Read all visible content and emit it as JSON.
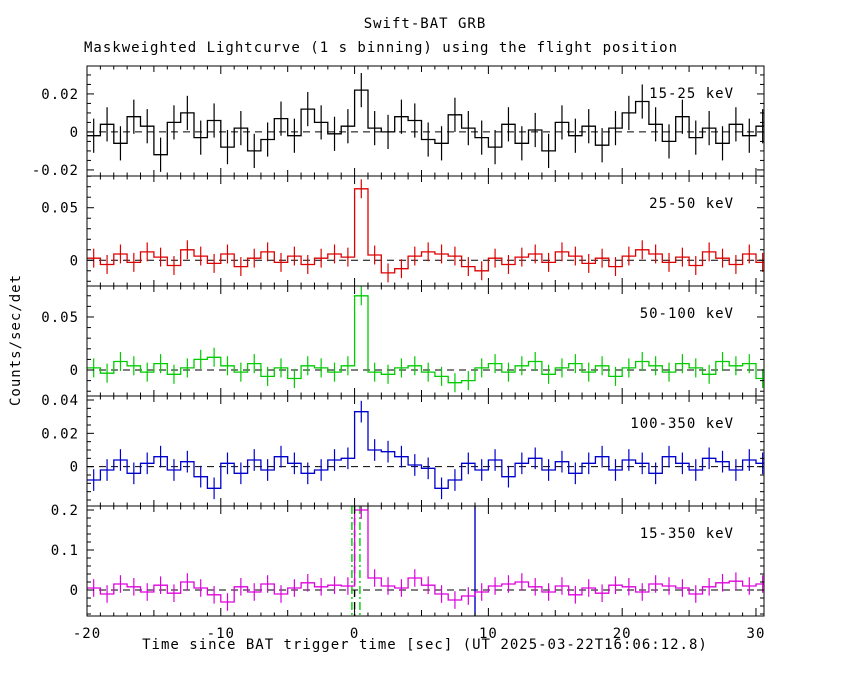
{
  "chart_data": {
    "type": "line",
    "title": "Swift-BAT GRB",
    "subtitle": "Maskweighted Lightcurve (1 s binning) using the flight position",
    "y_axis_label": "Counts/sec/det",
    "x_axis": {
      "label": "Time since BAT trigger time [sec] (UT 2025-03-22T16:06:12.8)",
      "xlim": [
        -20,
        30.6
      ],
      "major_ticks": [
        [
          -20,
          "-20"
        ],
        [
          -10,
          "-10"
        ],
        [
          0,
          "0"
        ],
        [
          10,
          "10"
        ],
        [
          20,
          "20"
        ],
        [
          30,
          "30"
        ]
      ],
      "minor_step": 1,
      "x_start": -20,
      "bin_width": 1
    },
    "panels": [
      {
        "label": "15-25 keV",
        "color": "#000000",
        "ylim": [
          -0.0232,
          0.0347
        ],
        "yticks": [
          [
            -0.02,
            "-0.02"
          ],
          [
            0,
            "0"
          ],
          [
            0.02,
            "0.02"
          ]
        ],
        "ytick_minor_step": 0.005,
        "error": 0.009,
        "values": [
          -0.002,
          0.004,
          -0.006,
          0.008,
          0.003,
          -0.012,
          0.005,
          0.01,
          -0.003,
          0.006,
          -0.008,
          0.002,
          -0.01,
          -0.004,
          0.007,
          -0.002,
          0.012,
          0.005,
          -0.001,
          0.003,
          0.022,
          0.002,
          0.0,
          0.008,
          0.006,
          -0.004,
          -0.006,
          0.009,
          0.002,
          -0.003,
          -0.008,
          0.004,
          -0.006,
          0.001,
          -0.01,
          0.005,
          -0.002,
          0.003,
          -0.007,
          0.002,
          0.01,
          0.016,
          0.004,
          -0.005,
          0.008,
          -0.003,
          0.002,
          -0.006,
          0.004,
          -0.002,
          0.003
        ],
        "vlines": []
      },
      {
        "label": "25-50 keV",
        "color": "#dd0000",
        "ylim": [
          -0.0245,
          0.0802
        ],
        "yticks": [
          [
            0,
            "0"
          ],
          [
            0.05,
            "0.05"
          ]
        ],
        "ytick_minor_step": 0.01,
        "error": 0.009,
        "values": [
          0.002,
          -0.004,
          0.006,
          -0.002,
          0.008,
          0.003,
          -0.005,
          0.01,
          0.004,
          -0.003,
          0.006,
          -0.006,
          0.002,
          0.008,
          -0.002,
          0.004,
          -0.004,
          0.002,
          0.006,
          0.003,
          0.068,
          0.005,
          -0.012,
          -0.008,
          0.004,
          0.008,
          0.006,
          0.004,
          -0.006,
          -0.01,
          0.002,
          -0.004,
          0.003,
          0.006,
          -0.002,
          0.008,
          0.004,
          -0.003,
          0.002,
          -0.006,
          0.004,
          0.01,
          0.006,
          -0.002,
          0.003,
          -0.005,
          0.008,
          0.002,
          -0.004,
          0.006,
          -0.002
        ],
        "vlines": []
      },
      {
        "label": "50-100 keV",
        "color": "#00cc00",
        "ylim": [
          -0.0245,
          0.0792
        ],
        "yticks": [
          [
            0,
            "0"
          ],
          [
            0.05,
            "0.05"
          ]
        ],
        "ytick_minor_step": 0.01,
        "error": 0.009,
        "values": [
          0.002,
          -0.003,
          0.008,
          0.004,
          -0.002,
          0.006,
          -0.004,
          0.002,
          0.01,
          0.012,
          0.004,
          -0.002,
          0.006,
          -0.006,
          0.002,
          -0.008,
          0.004,
          0.002,
          -0.002,
          0.004,
          0.07,
          -0.002,
          -0.004,
          0.002,
          0.004,
          -0.002,
          -0.006,
          -0.012,
          -0.01,
          0.002,
          0.006,
          -0.002,
          0.004,
          0.008,
          -0.004,
          0.002,
          0.006,
          -0.002,
          0.004,
          -0.006,
          0.002,
          0.008,
          0.004,
          -0.002,
          0.006,
          0.002,
          -0.004,
          0.008,
          0.004,
          0.006,
          -0.008
        ],
        "vlines": []
      },
      {
        "label": "100-350 keV",
        "color": "#0000cc",
        "ylim": [
          -0.0236,
          0.0424
        ],
        "yticks": [
          [
            0,
            "0"
          ],
          [
            0.02,
            "0.02"
          ],
          [
            0.04,
            "0.04"
          ]
        ],
        "ytick_minor_step": 0.005,
        "error": 0.0065,
        "values": [
          -0.008,
          -0.002,
          0.004,
          -0.004,
          0.002,
          0.006,
          -0.002,
          0.003,
          -0.006,
          -0.013,
          0.002,
          -0.004,
          0.004,
          -0.002,
          0.006,
          0.002,
          -0.004,
          -0.002,
          0.004,
          0.005,
          0.033,
          0.01,
          0.009,
          0.006,
          0.001,
          -0.001,
          -0.013,
          -0.008,
          0.002,
          -0.002,
          0.004,
          -0.006,
          0.002,
          0.005,
          -0.002,
          0.003,
          -0.004,
          0.002,
          0.006,
          -0.002,
          0.004,
          0.002,
          -0.004,
          0.006,
          0.002,
          -0.002,
          0.005,
          0.003,
          -0.002,
          0.004,
          0.002
        ],
        "vlines": []
      },
      {
        "label": "15-350 keV",
        "color": "#dd00dd",
        "ylim": [
          -0.065,
          0.21
        ],
        "yticks": [
          [
            0,
            "0"
          ],
          [
            0.1,
            "0.1"
          ],
          [
            0.2,
            "0.2"
          ]
        ],
        "ytick_minor_step": 0.02,
        "error": 0.022,
        "values": [
          0.005,
          -0.01,
          0.015,
          0.008,
          -0.005,
          0.012,
          -0.008,
          0.02,
          0.005,
          -0.012,
          -0.03,
          0.008,
          -0.005,
          0.015,
          -0.01,
          0.005,
          0.018,
          0.008,
          0.012,
          0.01,
          0.2,
          0.03,
          0.01,
          0.005,
          0.03,
          0.012,
          -0.01,
          -0.025,
          -0.015,
          -0.005,
          0.01,
          0.015,
          0.02,
          0.008,
          -0.005,
          0.01,
          -0.012,
          0.005,
          -0.008,
          0.012,
          0.008,
          -0.005,
          0.015,
          0.01,
          0.005,
          -0.01,
          0.008,
          0.018,
          0.022,
          0.01,
          0.015
        ],
        "vlines": [
          {
            "x": 0.0,
            "color": "#000000",
            "style": "dashed"
          },
          {
            "x": -0.2,
            "color": "#00cc00",
            "style": "dashdot"
          },
          {
            "x": 0.4,
            "color": "#00cc00",
            "style": "dashdot"
          },
          {
            "x": 9.0,
            "color": "#0000cc",
            "style": "solid"
          }
        ]
      }
    ]
  }
}
